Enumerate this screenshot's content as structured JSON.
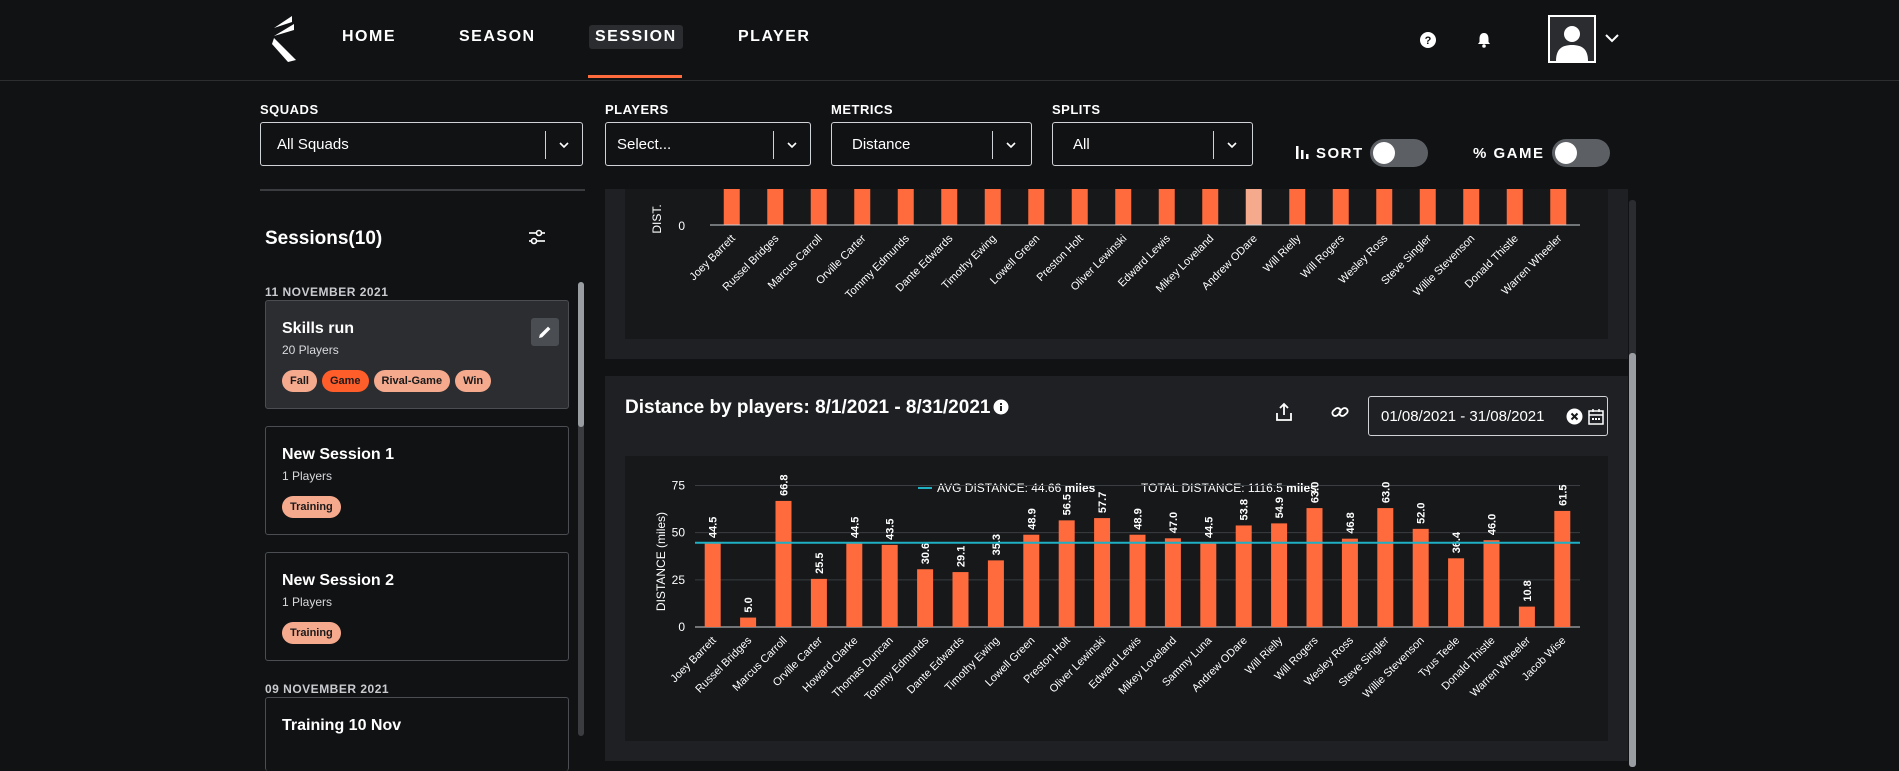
{
  "nav": {
    "items": [
      "HOME",
      "SEASON",
      "SESSION",
      "PLAYER"
    ],
    "active": "SESSION"
  },
  "filters": {
    "squads": {
      "label": "SQUADS",
      "value": "All Squads"
    },
    "players": {
      "label": "PLAYERS",
      "value": "Select..."
    },
    "metrics": {
      "label": "METRICS",
      "value": "Distance"
    },
    "splits": {
      "label": "SPLITS",
      "value": "All"
    },
    "sort_label": "SORT",
    "game_label": "% GAME"
  },
  "sidebar": {
    "title": "Sessions(10)",
    "groups": [
      {
        "date": "11 NOVEMBER 2021",
        "sessions": [
          {
            "title": "Skills run",
            "players": "20 Players",
            "tags": [
              "Fall",
              "Game",
              "Rival-Game",
              "Win"
            ]
          },
          {
            "title": "New Session 1",
            "players": "1 Players",
            "tags": [
              "Training"
            ]
          },
          {
            "title": "New Session 2",
            "players": "1 Players",
            "tags": [
              "Training"
            ]
          }
        ]
      },
      {
        "date": "09 NOVEMBER 2021",
        "sessions": [
          {
            "title": "Training 10 Nov",
            "players": "",
            "tags": []
          }
        ]
      }
    ]
  },
  "main": {
    "title": "Distance by players: 8/1/2021 - 8/31/2021",
    "date_range": "01/08/2021 - 31/08/2021"
  },
  "colors": {
    "bar": "#ff6b3d",
    "bar_light": "#f5a98d",
    "avg_line": "#1fb0c4",
    "accent": "#ff6b3d"
  },
  "chart_data": [
    {
      "type": "bar",
      "title": "",
      "ylabel": "DIST.",
      "y_tick_visible": "0",
      "categories": [
        "Joey Barrett",
        "Russel Bridges",
        "Marcus Carroll",
        "Orville Carter",
        "Tommy Edmunds",
        "Dante Edwards",
        "Timothy Ewing",
        "Lowell Green",
        "Preston Holt",
        "Oliver Lewinski",
        "Edward Lewis",
        "Mikey Loveland",
        "Andrew ODare",
        "Will Rielly",
        "Will Rogers",
        "Wesley Ross",
        "Steve Singler",
        "Willie Stevenson",
        "Donald Thistle",
        "Warren Wheeler"
      ],
      "highlighted": "Andrew ODare"
    },
    {
      "type": "bar",
      "title": "Distance by players: 8/1/2021 - 8/31/2021",
      "ylabel": "DISTANCE (miles)",
      "ylim": [
        0,
        80
      ],
      "yticks": [
        0,
        25,
        50,
        75
      ],
      "legend": {
        "avg_label": "AVG DISTANCE: 44.66",
        "total_label": "TOTAL DISTANCE: 1116.5",
        "unit": "miles"
      },
      "avg_value": 44.66,
      "categories": [
        "Joey Barrett",
        "Russel Bridges",
        "Marcus Carroll",
        "Orville Carter",
        "Howard Clarke",
        "Thomas Duncan",
        "Tommy Edmunds",
        "Dante Edwards",
        "Timothy Ewing",
        "Lowell Green",
        "Preston Holt",
        "Oliver Lewinski",
        "Edward Lewis",
        "Mikey Loveland",
        "Sammy Luna",
        "Andrew ODare",
        "Will Rielly",
        "Will Rogers",
        "Wesley Ross",
        "Steve Singler",
        "Willie Stevenson",
        "Tyus Teele",
        "Donald Thistle",
        "Warren Wheeler",
        "Jacob Wise"
      ],
      "values": [
        44.5,
        5.0,
        66.8,
        25.5,
        44.5,
        43.5,
        30.6,
        29.1,
        35.3,
        48.9,
        56.5,
        57.7,
        48.9,
        47.0,
        44.5,
        53.8,
        54.9,
        63.0,
        46.8,
        63.0,
        52.0,
        36.4,
        46.0,
        10.8,
        61.5
      ],
      "labels": [
        "44.5",
        "5.0",
        "66.8",
        "25.5",
        "44.5",
        "43.5",
        "30.6",
        "29.1",
        "35.3",
        "48.9",
        "56.5",
        "57.7",
        "48.9",
        "47.0",
        "44.5",
        "53.8",
        "54.9",
        "63.0",
        "46.8",
        "63.0",
        "52.0",
        "36.4",
        "46.0",
        "10.8",
        "61.5"
      ]
    }
  ]
}
